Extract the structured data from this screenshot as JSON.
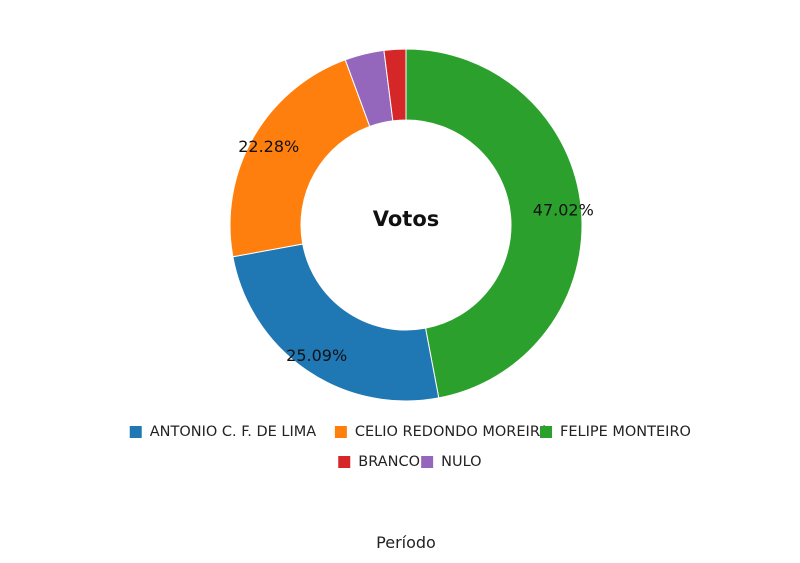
{
  "chart_data": {
    "type": "pie",
    "subtype": "donut",
    "title": "Votos",
    "xlabel": "Período",
    "legend_position": "bottom",
    "categories": [
      "ANTONIO C. F. DE LIMA",
      "CELIO REDONDO MOREIRA",
      "FELIPE MONTEIRO",
      "BRANCO",
      "NULO"
    ],
    "values": [
      25.09,
      22.28,
      47.02,
      2.0,
      3.61
    ],
    "data_labels": [
      "25.09%",
      "22.28%",
      "47.02%",
      "",
      ""
    ],
    "colors": [
      "#1f77b4",
      "#ff7f0e",
      "#2ca02c",
      "#d62728",
      "#9467bd"
    ]
  }
}
